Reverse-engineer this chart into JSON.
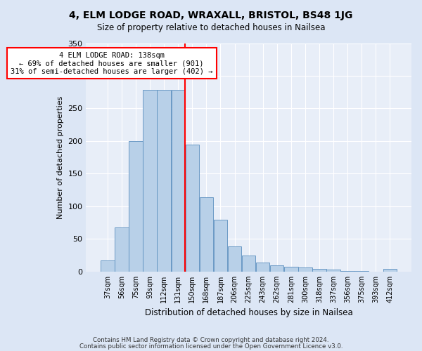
{
  "title": "4, ELM LODGE ROAD, WRAXALL, BRISTOL, BS48 1JG",
  "subtitle": "Size of property relative to detached houses in Nailsea",
  "xlabel": "Distribution of detached houses by size in Nailsea",
  "ylabel": "Number of detached properties",
  "categories": [
    "37sqm",
    "56sqm",
    "75sqm",
    "93sqm",
    "112sqm",
    "131sqm",
    "150sqm",
    "168sqm",
    "187sqm",
    "206sqm",
    "225sqm",
    "243sqm",
    "262sqm",
    "281sqm",
    "300sqm",
    "318sqm",
    "337sqm",
    "356sqm",
    "375sqm",
    "393sqm",
    "412sqm"
  ],
  "values": [
    17,
    68,
    200,
    278,
    278,
    278,
    195,
    114,
    79,
    39,
    25,
    14,
    9,
    7,
    6,
    4,
    3,
    1,
    1,
    0,
    4
  ],
  "bar_color": "#b8d0e8",
  "bar_edge_color": "#5a8fbf",
  "red_line_x": 5.5,
  "annotation_line1": "4 ELM LODGE ROAD: 138sqm",
  "annotation_line2": "← 69% of detached houses are smaller (901)",
  "annotation_line3": "31% of semi-detached houses are larger (402) →",
  "ylim": [
    0,
    350
  ],
  "yticks": [
    0,
    50,
    100,
    150,
    200,
    250,
    300,
    350
  ],
  "footer1": "Contains HM Land Registry data © Crown copyright and database right 2024.",
  "footer2": "Contains public sector information licensed under the Open Government Licence v3.0.",
  "bg_color": "#e8eef8",
  "plot_bg_color": "#e8eef8",
  "fig_bg_color": "#dce6f5"
}
